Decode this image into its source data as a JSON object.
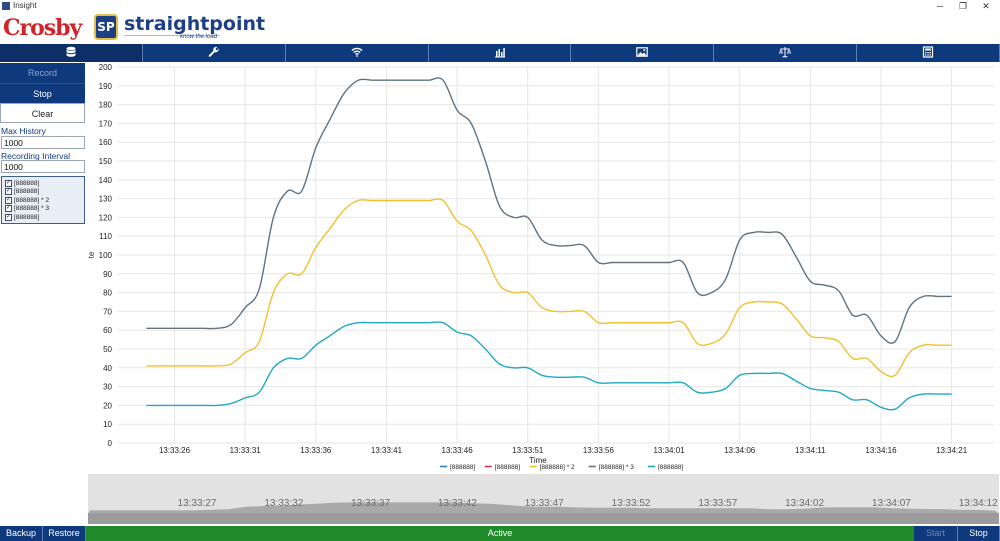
{
  "window": {
    "title": "Insight",
    "minimize_glyph": "─",
    "restore_glyph": "❐",
    "close_glyph": "✕"
  },
  "header": {
    "crosby_logo": "Crosby",
    "straightpoint_logo": "straightpoint",
    "straightpoint_mark": "SP",
    "tagline": "know the load"
  },
  "nav": {
    "tabs": [
      {
        "icon": "database-icon"
      },
      {
        "icon": "wrench-icon"
      },
      {
        "icon": "wifi-icon"
      },
      {
        "icon": "bar-chart-icon"
      },
      {
        "icon": "image-icon"
      },
      {
        "icon": "scale-icon"
      },
      {
        "icon": "calculator-icon"
      }
    ]
  },
  "sidebar": {
    "record_label": "Record",
    "stop_label": "Stop",
    "clear_label": "Clear",
    "max_history_label": "Max History",
    "max_history_value": "1000",
    "interval_label": "Recording Interval (ms)",
    "interval_value": "1000",
    "series": [
      {
        "label": "[888888]",
        "checked": true
      },
      {
        "label": "[888888]",
        "checked": true
      },
      {
        "label": "[888888] * 2",
        "checked": true
      },
      {
        "label": "[888888] * 3",
        "checked": true
      },
      {
        "label": "[888888]",
        "checked": true
      }
    ]
  },
  "bottom": {
    "backup_label": "Backup",
    "restore_label": "Restore",
    "status_label": "Active",
    "start_label": "Start",
    "stop_label": "Stop"
  },
  "overview": {
    "tick_labels": [
      "13:33:27",
      "13:33:32",
      "13:33:37",
      "13:33:42",
      "13:33:47",
      "13:33:52",
      "13:33:57",
      "13:34:02",
      "13:34:07",
      "13:34:12"
    ]
  },
  "colors": {
    "nav_bg": "#0e3a7d",
    "active_green": "#1f8a2a",
    "grid": "#e6e6e6"
  },
  "chart_data": {
    "type": "line",
    "xlabel": "Time",
    "ylabel": "te",
    "ylim": [
      0,
      200
    ],
    "yticks": [
      0,
      10,
      20,
      30,
      40,
      50,
      60,
      70,
      80,
      90,
      100,
      110,
      120,
      130,
      140,
      150,
      160,
      170,
      180,
      190,
      200
    ],
    "xticks": [
      "13:33:26",
      "13:33:31",
      "13:33:36",
      "13:33:41",
      "13:33:46",
      "13:33:51",
      "13:33:56",
      "13:34:01",
      "13:34:06",
      "13:34:11",
      "13:34:16",
      "13:34:21"
    ],
    "xlim_seconds_from_first_tick": [
      -4,
      58
    ],
    "grid": true,
    "legend_position": "bottom-center",
    "time_seconds": [
      -2,
      -1,
      0,
      1,
      2,
      3,
      4,
      5,
      6,
      7,
      8,
      9,
      10,
      11,
      12,
      13,
      14,
      15,
      16,
      17,
      18,
      19,
      20,
      21,
      22,
      23,
      24,
      25,
      26,
      27,
      28,
      29,
      30,
      31,
      32,
      33,
      34,
      35,
      36,
      37,
      38,
      39,
      40,
      41,
      42,
      43,
      44,
      45,
      46,
      47,
      48,
      49,
      50
    ],
    "series": [
      {
        "name": "[888888]",
        "color": "#2b7fc3",
        "values": []
      },
      {
        "name": "[888888]",
        "color": "#d93a3a",
        "values": []
      },
      {
        "name": "[888888] * 2",
        "color": "#f0c030",
        "values": [
          41,
          41,
          41,
          41,
          41,
          41,
          42,
          48,
          54,
          80,
          90,
          90,
          104,
          114,
          124,
          129,
          129,
          129,
          129,
          129,
          129,
          129,
          118,
          113,
          100,
          84,
          80,
          80,
          72,
          70,
          70,
          70,
          64,
          64,
          64,
          64,
          64,
          64,
          64,
          53,
          53,
          58,
          72,
          75,
          75,
          74,
          66,
          57,
          56,
          54,
          45,
          45,
          38
        ]
      },
      {
        "name": "[888888] * 3",
        "color": "#5f7383",
        "values": [
          61,
          61,
          61,
          61,
          61,
          61,
          63,
          72,
          82,
          120,
          134,
          134,
          157,
          172,
          186,
          193,
          193,
          193,
          193,
          193,
          193,
          193,
          177,
          170,
          150,
          126,
          120,
          120,
          108,
          105,
          105,
          105,
          96,
          96,
          96,
          96,
          96,
          96,
          96,
          80,
          80,
          87,
          108,
          112,
          112,
          111,
          99,
          86,
          84,
          81,
          68,
          68,
          57
        ]
      },
      {
        "name": "[888888]",
        "color": "#1fa9bf",
        "values": [
          20,
          20,
          20,
          20,
          20,
          20,
          21,
          24,
          27,
          40,
          45,
          45,
          52,
          57,
          62,
          64,
          64,
          64,
          64,
          64,
          64,
          64,
          59,
          57,
          50,
          42,
          40,
          40,
          36,
          35,
          35,
          35,
          32,
          32,
          32,
          32,
          32,
          32,
          32,
          27,
          27,
          29,
          36,
          37,
          37,
          37,
          33,
          29,
          28,
          27,
          23,
          23,
          19
        ]
      }
    ],
    "tail_extension": {
      "time_seconds": [
        51,
        52,
        53,
        54,
        55
      ],
      "[888888] * 2": [
        36,
        48,
        52,
        52,
        52
      ],
      "[888888] * 3": [
        54,
        72,
        78,
        78,
        78
      ],
      "[888888]": [
        18,
        24,
        26,
        26,
        26
      ]
    }
  }
}
